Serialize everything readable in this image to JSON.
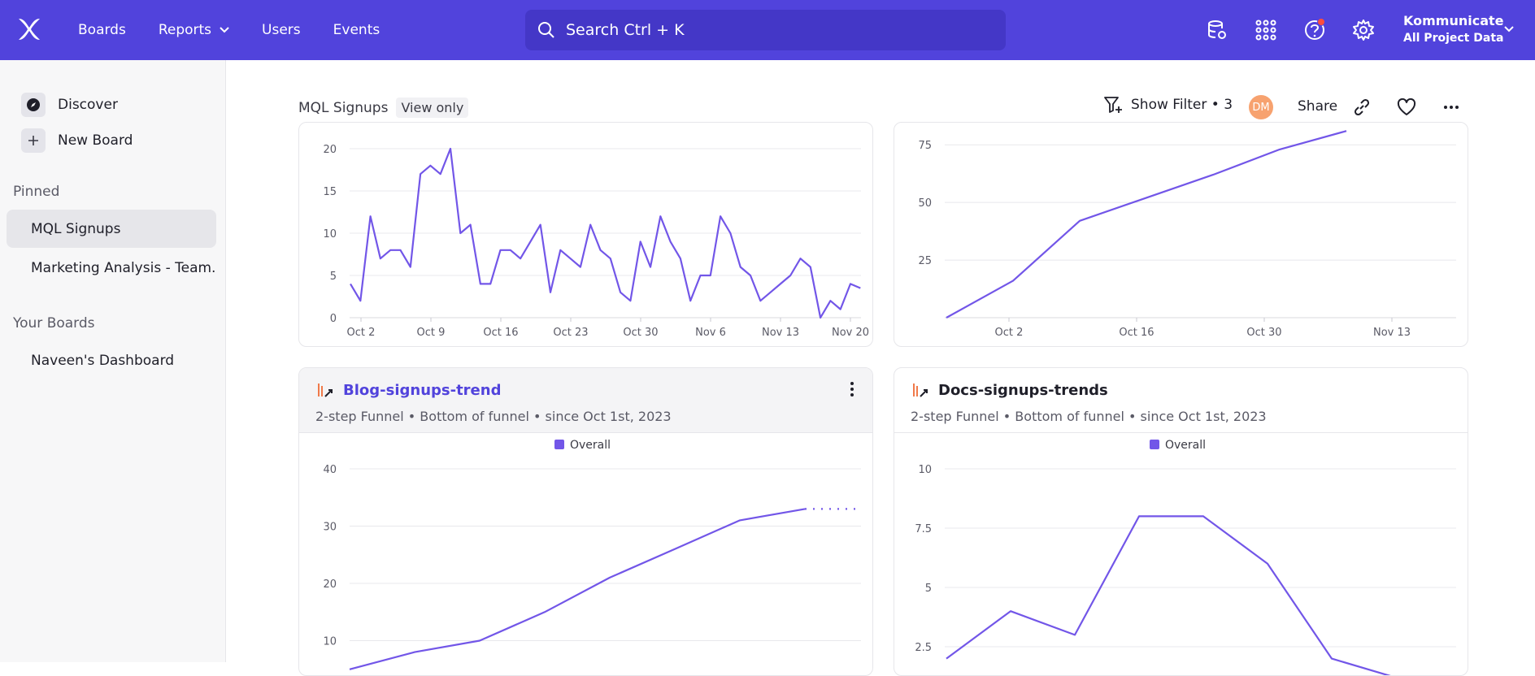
{
  "nav": {
    "boards": "Boards",
    "reports": "Reports",
    "users": "Users",
    "events": "Events"
  },
  "search": {
    "placeholder": "Search  Ctrl + K"
  },
  "project": {
    "name": "Kommunicate",
    "scope": "All Project Data"
  },
  "sidebar": {
    "discover": "Discover",
    "new_board": "New Board",
    "pinned_heading": "Pinned",
    "pinned": [
      "MQL Signups",
      "Marketing Analysis - Team..."
    ],
    "your_boards_heading": "Your Boards",
    "boards": [
      "Naveen's Dashboard"
    ]
  },
  "board": {
    "title": "MQL Signups",
    "view_only": "View only",
    "filter": "Show Filter • 3",
    "avatar": "DM",
    "share": "Share"
  },
  "colors": {
    "accent": "#5143dc",
    "line": "#7256e8",
    "avatar": "#f7a26f"
  },
  "cards": [
    {
      "id": "top-left",
      "chart_data": {
        "type": "line",
        "x_ticks": [
          "Oct 2",
          "Oct 9",
          "Oct 16",
          "Oct 23",
          "Oct 30",
          "Nov 6",
          "Nov 13",
          "Nov 20"
        ],
        "y_ticks": [
          0,
          5,
          10,
          15,
          20
        ],
        "ylim": [
          0,
          20
        ],
        "values": [
          4,
          2,
          12,
          7,
          8,
          8,
          6,
          17,
          18,
          17,
          20,
          10,
          11,
          4,
          4,
          8,
          8,
          7,
          9,
          11,
          3,
          8,
          7,
          6,
          11,
          8,
          7,
          3,
          2,
          9,
          6,
          12,
          9,
          7,
          2,
          5,
          5,
          12,
          10,
          6,
          5,
          2,
          3,
          4,
          5,
          7,
          6,
          0,
          2,
          1,
          4,
          3.5
        ]
      }
    },
    {
      "id": "top-right",
      "chart_data": {
        "type": "line",
        "x_ticks": [
          "Oct 2",
          "Oct 16",
          "Oct 30",
          "Nov 13"
        ],
        "y_ticks": [
          25,
          50,
          75
        ],
        "ylim": [
          0,
          80
        ],
        "x": [
          0,
          1,
          2,
          3,
          4,
          5,
          6
        ],
        "values": [
          0,
          16,
          42,
          52,
          62,
          73,
          81
        ]
      }
    },
    {
      "id": "blog",
      "title": "Blog-signups-trend",
      "subtitle": "2-step Funnel • Bottom of funnel • since Oct 1st, 2023",
      "legend": "Overall",
      "chart_data": {
        "type": "line",
        "y_ticks": [
          10,
          20,
          30,
          40
        ],
        "ylim": [
          0,
          40
        ],
        "values": [
          5,
          8,
          10,
          15,
          21,
          26,
          31,
          33
        ],
        "dotted_values": [
          33,
          33
        ]
      }
    },
    {
      "id": "docs",
      "title": "Docs-signups-trends",
      "subtitle": "2-step Funnel • Bottom of funnel • since Oct 1st, 2023",
      "legend": "Overall",
      "chart_data": {
        "type": "line",
        "y_ticks": [
          2.5,
          5,
          7.5,
          10
        ],
        "ylim": [
          0,
          10
        ],
        "values": [
          2,
          4,
          3,
          8,
          8,
          6,
          2,
          1.2
        ]
      }
    }
  ]
}
